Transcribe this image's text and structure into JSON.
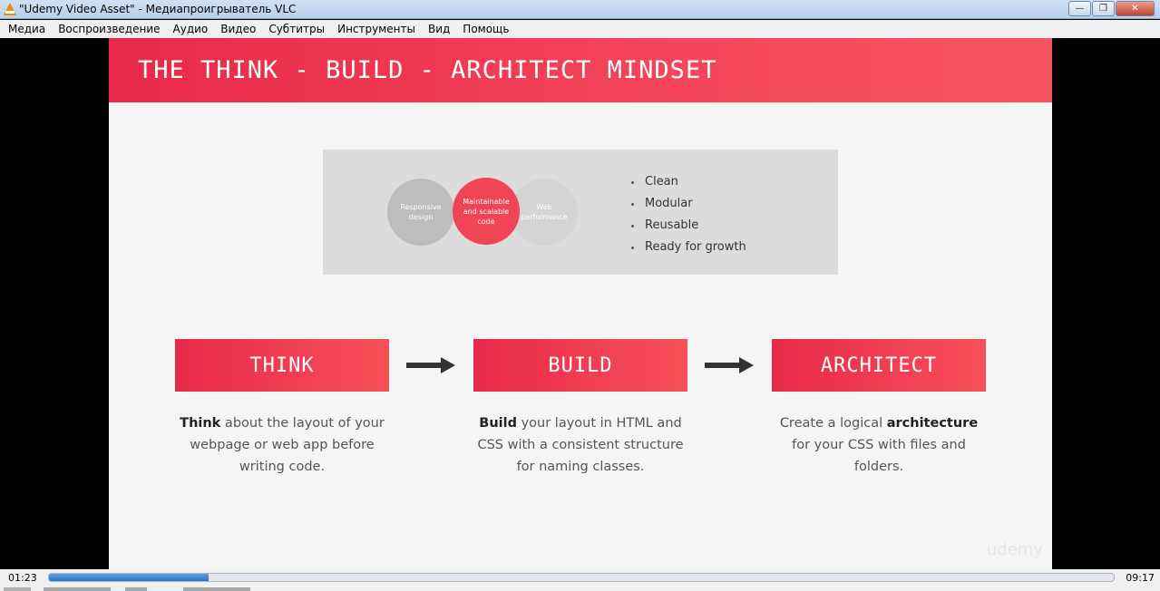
{
  "window": {
    "title": "\"Udemy Video Asset\" - Медиапроигрыватель VLC",
    "icon": "vlc-cone-icon",
    "buttons": {
      "minimize": "—",
      "maximize": "❐",
      "close": "✕"
    }
  },
  "menu": {
    "items": [
      "Медиа",
      "Воспроизведение",
      "Аудио",
      "Видео",
      "Субтитры",
      "Инструменты",
      "Вид",
      "Помощь"
    ]
  },
  "slide": {
    "title": "THE THINK - BUILD - ARCHITECT MINDSET",
    "venn": {
      "left": "Responsive design",
      "center": "Maintainable and scalable code",
      "right": "Web performance"
    },
    "bullets": [
      "Clean",
      "Modular",
      "Reusable",
      "Ready for growth"
    ],
    "stages": [
      {
        "label": "THINK",
        "desc_bold": "Think",
        "desc_rest": " about the layout of your webpage or web app before writing code."
      },
      {
        "label": "BUILD",
        "desc_bold": "Build",
        "desc_rest": " your layout in HTML and CSS with a consistent structure for naming classes."
      },
      {
        "label": "ARCHITECT",
        "desc_pre": "Create a logical ",
        "desc_bold": "architecture",
        "desc_rest": " for your CSS with files and folders."
      }
    ],
    "watermark": "udemy",
    "accent_color": "#f04455"
  },
  "player": {
    "current_time": "01:23",
    "total_time": "09:17",
    "progress_percent": 15
  }
}
